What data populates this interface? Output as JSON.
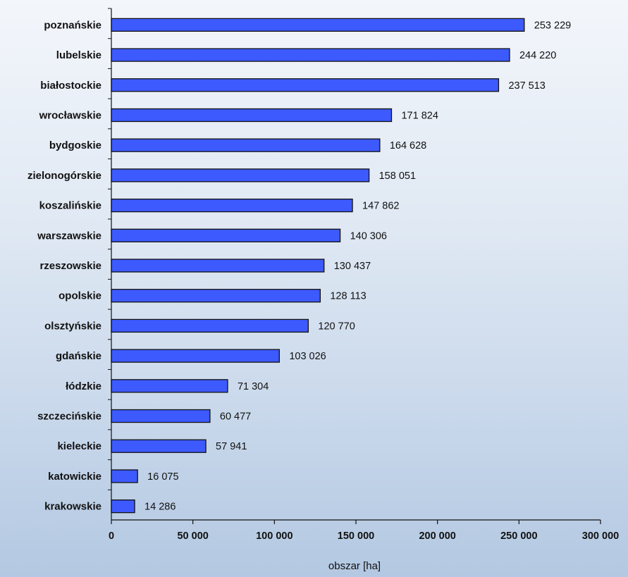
{
  "chart_data": {
    "type": "bar",
    "orientation": "horizontal",
    "categories": [
      "poznańskie",
      "lubelskie",
      "białostockie",
      "wrocławskie",
      "bydgoskie",
      "zielonogórskie",
      "koszalińskie",
      "warszawskie",
      "rzeszowskie",
      "opolskie",
      "olsztyńskie",
      "gdańskie",
      "łódzkie",
      "szczecińskie",
      "kieleckie",
      "katowickie",
      "krakowskie"
    ],
    "values": [
      253229,
      244220,
      237513,
      171824,
      164628,
      158051,
      147862,
      140306,
      130437,
      128113,
      120770,
      103026,
      71304,
      60477,
      57941,
      16075,
      14286
    ],
    "data_labels": [
      "253 229",
      "244 220",
      "237 513",
      "171 824",
      "164 628",
      "158 051",
      "147 862",
      "140 306",
      "130 437",
      "128 113",
      "120 770",
      "103 026",
      "71 304",
      "60 477",
      "57 941",
      "16 075",
      "14 286"
    ],
    "xlabel": "obszar [ha]",
    "ylabel": "",
    "title": "",
    "xlim": [
      0,
      300000
    ],
    "x_ticks": [
      0,
      50000,
      100000,
      150000,
      200000,
      250000,
      300000
    ],
    "x_tick_labels": [
      "0",
      "50 000",
      "100 000",
      "150 000",
      "200 000",
      "250 000",
      "300 000"
    ],
    "grid": false,
    "legend": "none",
    "colors": {
      "bar_fill": "#3d5afe",
      "bar_stroke": "#111111",
      "axis": "#111111"
    }
  }
}
